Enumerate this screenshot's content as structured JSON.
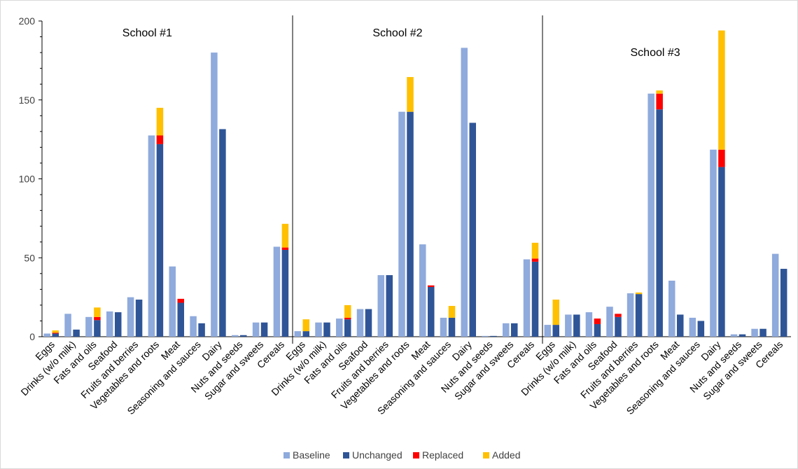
{
  "chart_data": {
    "type": "bar",
    "stacked_pair": true,
    "ylim": [
      0,
      200
    ],
    "yticks": [
      0,
      50,
      100,
      150,
      200
    ],
    "xlabel": "",
    "ylabel": "",
    "legend_position": "bottom",
    "colors": {
      "Baseline": "#8faadc",
      "Unchanged": "#2f5597",
      "Replaced": "#ff0000",
      "Added": "#ffc000"
    },
    "legend": [
      "Baseline",
      "Unchanged",
      "Replaced",
      "Added"
    ],
    "categories": [
      "Eggs",
      "Drinks (w/o milk)",
      "Fats and oils",
      "Seafood",
      "Fruits and berries",
      "Vegetables and roots",
      "Meat",
      "Seasoning and sauces",
      "Dairy",
      "Nuts and seeds",
      "Sugar and sweets",
      "Cereals"
    ],
    "panels": [
      {
        "title": "School #1",
        "baseline": [
          2,
          14.5,
          12.5,
          16,
          25,
          127.5,
          44.5,
          13,
          180,
          1,
          9,
          57
        ],
        "unchanged": [
          2,
          4.5,
          10.5,
          15.5,
          23.5,
          122,
          21.5,
          8.5,
          131.5,
          1,
          9,
          55
        ],
        "replaced": [
          0.5,
          0,
          2,
          0,
          0,
          5.5,
          2.5,
          0,
          0,
          0,
          0,
          1.5
        ],
        "added": [
          1.5,
          0,
          6,
          0,
          0,
          17.5,
          0,
          0,
          0,
          0,
          0,
          15
        ]
      },
      {
        "title": "School #2",
        "baseline": [
          3.5,
          9,
          11.5,
          17.5,
          39,
          142.5,
          58.5,
          12,
          183,
          0.5,
          8.5,
          49
        ],
        "unchanged": [
          3.5,
          9,
          11,
          17.5,
          39,
          142.5,
          31.5,
          12,
          135.5,
          0.5,
          8.5,
          47.5
        ],
        "replaced": [
          0,
          0,
          1,
          0,
          0,
          0,
          1,
          0,
          0,
          0,
          0,
          2
        ],
        "added": [
          7.5,
          0,
          8,
          0,
          0,
          22,
          0,
          7.5,
          0,
          0,
          0,
          10
        ]
      },
      {
        "title": "School #3",
        "baseline": [
          7.5,
          14,
          15.5,
          19,
          27.5,
          154,
          35.5,
          12,
          118.5,
          1.5,
          5,
          52.5
        ],
        "unchanged": [
          7.5,
          14,
          8,
          12.5,
          27,
          144,
          14,
          10,
          107.5,
          1.5,
          5,
          43
        ],
        "replaced": [
          0,
          0,
          3.5,
          2,
          0,
          10,
          0,
          0,
          11,
          0,
          0,
          0
        ],
        "added": [
          16,
          0,
          0,
          0,
          1,
          2,
          0,
          0,
          75.5,
          0,
          0,
          0
        ]
      }
    ]
  }
}
